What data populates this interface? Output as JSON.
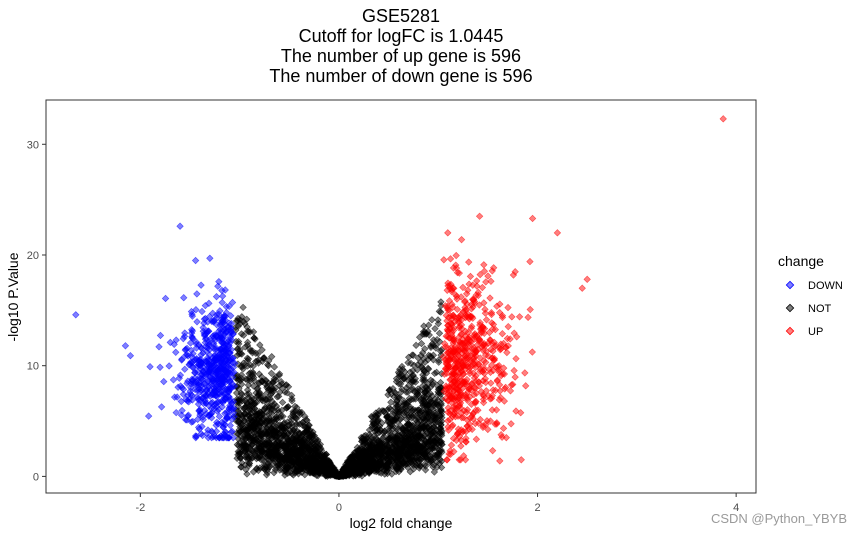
{
  "chart_data": {
    "type": "scatter",
    "title": "GSE5281",
    "subtitle_lines": [
      "Cutoff for logFC is 1.0445",
      "The number of up gene is 596",
      "The number of down gene is 596"
    ],
    "xlabel": "log2 fold change",
    "ylabel": "-log10 P.Value",
    "xlim": [
      -2.95,
      4.2
    ],
    "ylim": [
      -1.5,
      34
    ],
    "x_ticks": [
      -2,
      0,
      2,
      4
    ],
    "x_tick_labels": [
      "-2",
      "0",
      "2",
      "4"
    ],
    "y_ticks": [
      0,
      10,
      20,
      30
    ],
    "y_tick_labels": [
      "0",
      "10",
      "20",
      "30"
    ],
    "logFC_cutoff": 1.0445,
    "up_count": 596,
    "down_count": 596,
    "legend": {
      "title": "change",
      "position": "right",
      "entries": [
        {
          "label": "DOWN",
          "color": "#0000ff"
        },
        {
          "label": "NOT",
          "color": "#000000"
        },
        {
          "label": "UP",
          "color": "#ff0000"
        }
      ]
    },
    "grid": false,
    "outliers": [
      {
        "x": 3.87,
        "y": 32.3,
        "group": "UP"
      },
      {
        "x": -2.65,
        "y": 14.6,
        "group": "DOWN"
      },
      {
        "x": -1.6,
        "y": 22.6,
        "group": "DOWN"
      },
      {
        "x": 2.5,
        "y": 17.8,
        "group": "UP"
      },
      {
        "x": 2.45,
        "y": 17.0,
        "group": "UP"
      },
      {
        "x": 2.2,
        "y": 22.0,
        "group": "UP"
      },
      {
        "x": 1.95,
        "y": 23.3,
        "group": "UP"
      },
      {
        "x": 1.62,
        "y": 1.4,
        "group": "UP"
      },
      {
        "x": -2.1,
        "y": 10.9,
        "group": "DOWN"
      },
      {
        "x": -2.15,
        "y": 11.8,
        "group": "DOWN"
      },
      {
        "x": -1.3,
        "y": 19.7,
        "group": "DOWN"
      }
    ]
  },
  "watermark": "CSDN @Python_YBYB"
}
